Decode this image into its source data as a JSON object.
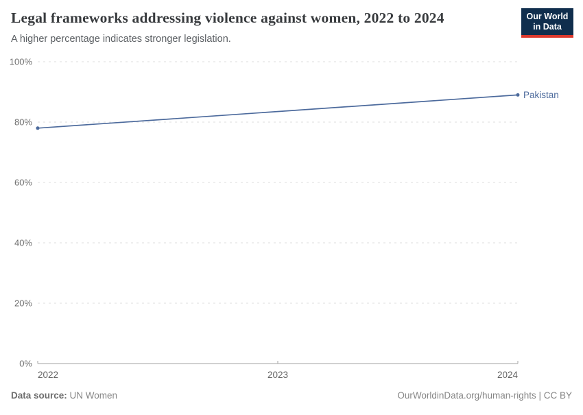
{
  "header": {
    "title": "Legal frameworks addressing violence against women, 2022 to 2024",
    "subtitle": "A higher percentage indicates stronger legislation.",
    "logo": {
      "line1": "Our World",
      "line2": "in Data",
      "bg_color": "#102e4d",
      "stripe_color": "#dc382c"
    }
  },
  "chart_data": {
    "type": "line",
    "title": "Legal frameworks addressing violence against women, 2022 to 2024",
    "subtitle": "A higher percentage indicates stronger legislation.",
    "series": [
      {
        "name": "Pakistan",
        "color": "#4c6a9c",
        "x": [
          2022,
          2024
        ],
        "values": [
          78,
          89
        ]
      }
    ],
    "x_ticks": [
      2022,
      2023,
      2024
    ],
    "y_ticks": [
      0,
      20,
      40,
      60,
      80,
      100
    ],
    "y_tick_suffix": "%",
    "xlim": [
      2022,
      2024
    ],
    "ylim": [
      0,
      100
    ],
    "grid": "horizontal-dashed",
    "gridline_color": "#dcdcdc",
    "axis_color": "#a3a3a3",
    "y_tick_label_color": "#6e6e6e",
    "x_tick_label_color": "#636363",
    "legend_position": "end-of-line-label"
  },
  "footer": {
    "source_label": "Data source:",
    "source_value": "UN Women",
    "right_text": "OurWorldinData.org/human-rights | CC BY"
  }
}
